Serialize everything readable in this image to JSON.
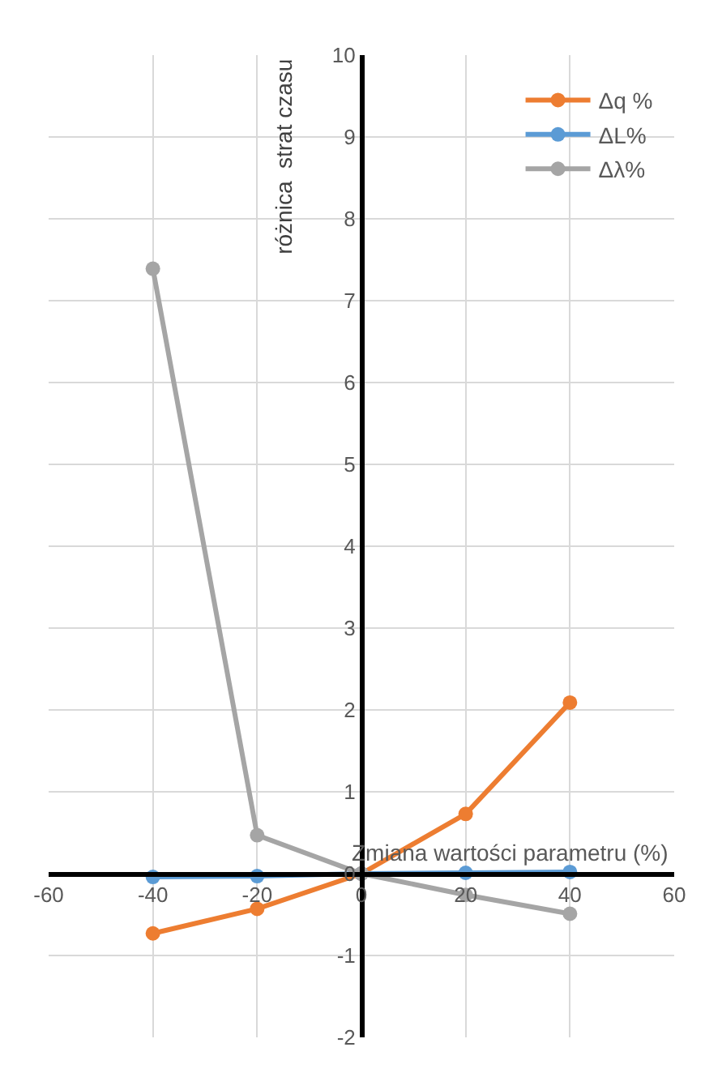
{
  "chart_data": {
    "type": "line",
    "xlabel": "Zmiana wartości parametru (%)",
    "ylabel": "różnica  strat czasu",
    "x": [
      -40,
      -20,
      0,
      20,
      40
    ],
    "series": [
      {
        "name": "Δq %",
        "color": "#ed7d31",
        "values": [
          -0.73,
          -0.43,
          0,
          0.73,
          2.09
        ]
      },
      {
        "name": "ΔL%",
        "color": "#5b9bd5",
        "values": [
          -0.04,
          -0.03,
          0,
          0.01,
          0.02
        ]
      },
      {
        "name": "Δλ%",
        "color": "#a5a5a5",
        "values": [
          7.39,
          0.47,
          0,
          -0.26,
          -0.49
        ]
      }
    ],
    "xlim": [
      -60,
      60
    ],
    "xticks": [
      -60,
      -40,
      -20,
      0,
      20,
      40,
      60
    ],
    "ylim": [
      -2,
      10
    ],
    "yticks": [
      -2,
      -1,
      0,
      1,
      2,
      3,
      4,
      5,
      6,
      7,
      8,
      9,
      10
    ],
    "grid": true,
    "legend": "top right",
    "marker": "circle",
    "line_style": "solid"
  }
}
